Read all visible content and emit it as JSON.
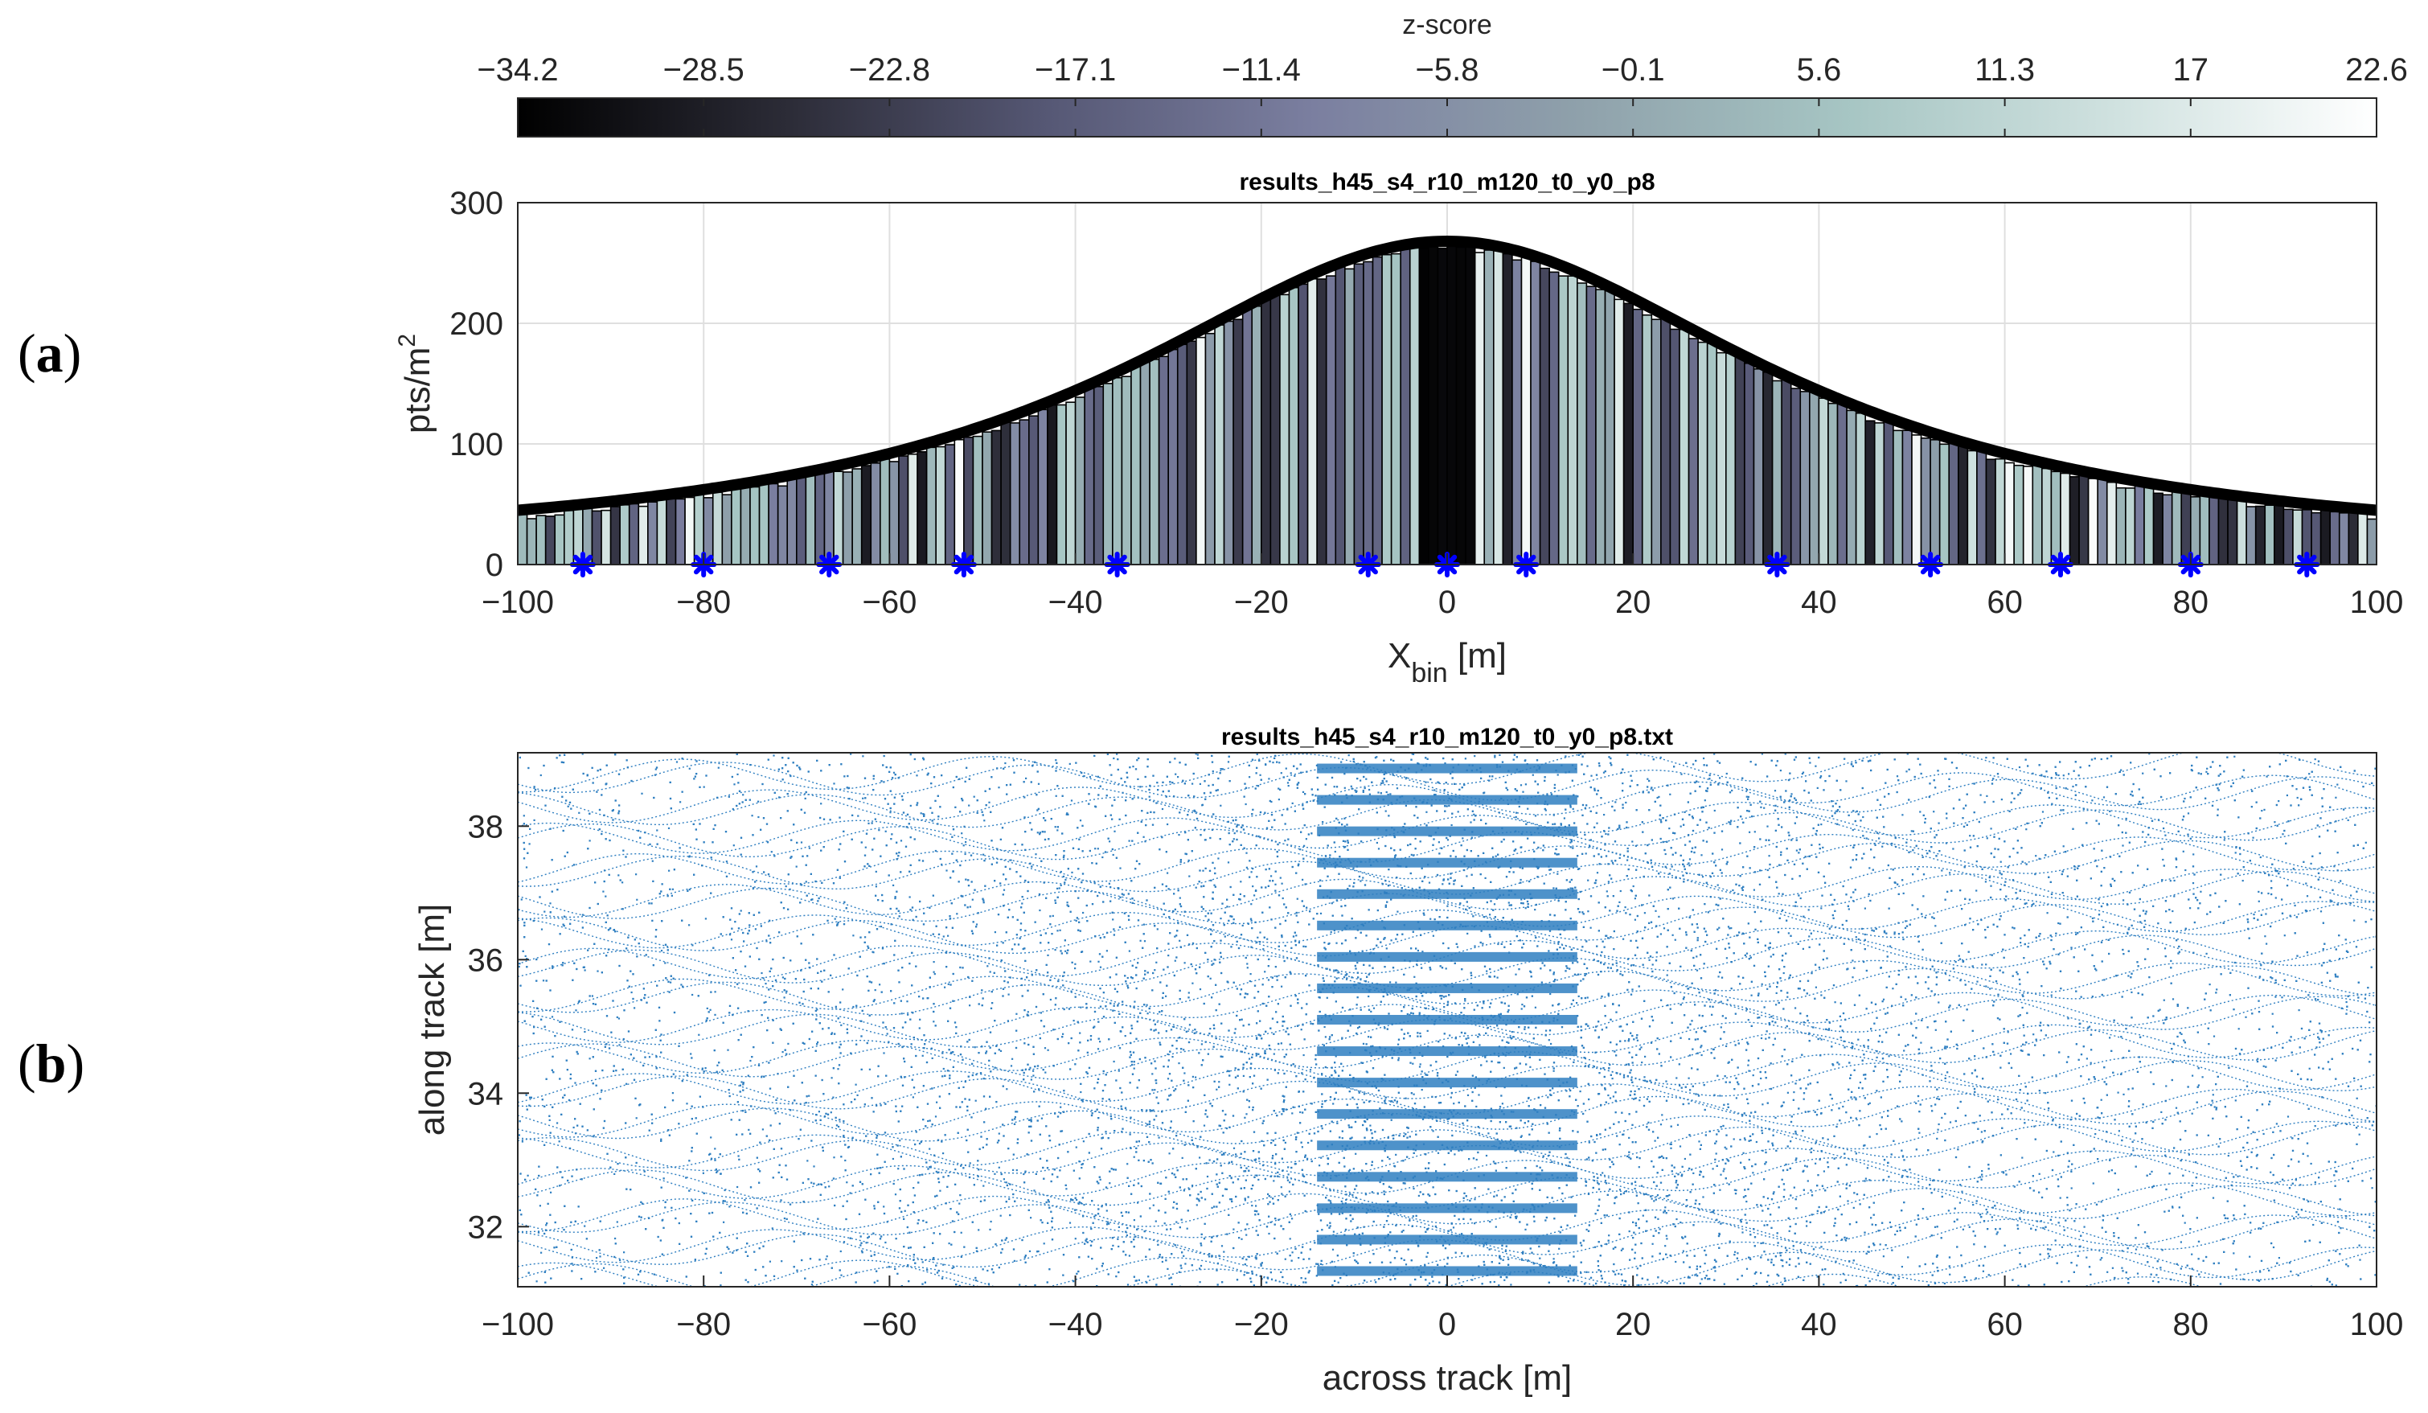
{
  "panel_labels": {
    "a_open": "(",
    "a_letter": "a",
    "a_close": ")",
    "b_open": "(",
    "b_letter": "b",
    "b_close": ")"
  },
  "colorbar": {
    "title": "z-score",
    "ticks": [
      "−34.2",
      "−28.5",
      "−22.8",
      "−17.1",
      "−11.4",
      "−5.8",
      "−0.1",
      "5.6",
      "11.3",
      "17",
      "22.6"
    ],
    "range": [
      -34.2,
      22.6
    ],
    "colormap": [
      "#000000",
      "#2b2b36",
      "#565875",
      "#7b7fa0",
      "#8fa1ab",
      "#a6c5c3",
      "#cfe1df",
      "#ffffff"
    ]
  },
  "chart_data": [
    {
      "type": "bar",
      "title": "results_h45_s4_r10_m120_t0_y0_p8",
      "ylabel_main": "pts/m",
      "ylabel_sup": "2",
      "xlabel_main": "X",
      "xlabel_sub": "bin",
      "xlabel_unit": " [m]",
      "xlim": [
        -100,
        100
      ],
      "ylim": [
        0,
        300
      ],
      "xticks": [
        -100,
        -80,
        -60,
        -40,
        -20,
        0,
        20,
        40,
        60,
        80,
        100
      ],
      "xtick_labels": [
        "−100",
        "−80",
        "−60",
        "−40",
        "−20",
        "0",
        "20",
        "40",
        "60",
        "80",
        "100"
      ],
      "yticks": [
        0,
        100,
        200,
        300
      ],
      "ytick_labels": [
        "0",
        "100",
        "200",
        "300"
      ],
      "grid": true,
      "bins": {
        "start": -100,
        "end": 100,
        "width": 1
      },
      "envelope": {
        "peak": 268,
        "peak_x": 0,
        "half_width": 43,
        "at_edges": 45
      },
      "marker_color": "#0000ff",
      "markers_x": [
        -93,
        -80,
        -66.5,
        -52,
        -35.5,
        -8.5,
        0,
        8.5,
        35.5,
        52,
        66,
        80,
        92.5
      ],
      "markers_y": 0
    },
    {
      "type": "scatter",
      "title": "results_h45_s4_r10_m120_t0_y0_p8.txt",
      "xlabel": "across track [m]",
      "ylabel": "along track [m]",
      "xlim": [
        -100,
        100
      ],
      "ylim": [
        31.1,
        39.1
      ],
      "xticks": [
        -100,
        -80,
        -60,
        -40,
        -20,
        0,
        20,
        40,
        60,
        80,
        100
      ],
      "xtick_labels": [
        "−100",
        "−80",
        "−60",
        "−40",
        "−20",
        "0",
        "20",
        "40",
        "60",
        "80",
        "100"
      ],
      "yticks": [
        32,
        34,
        36,
        38
      ],
      "ytick_labels": [
        "32",
        "34",
        "36",
        "38"
      ],
      "point_color": "#2f7fc1",
      "data_extent_y": [
        31.1,
        39.1
      ]
    }
  ]
}
